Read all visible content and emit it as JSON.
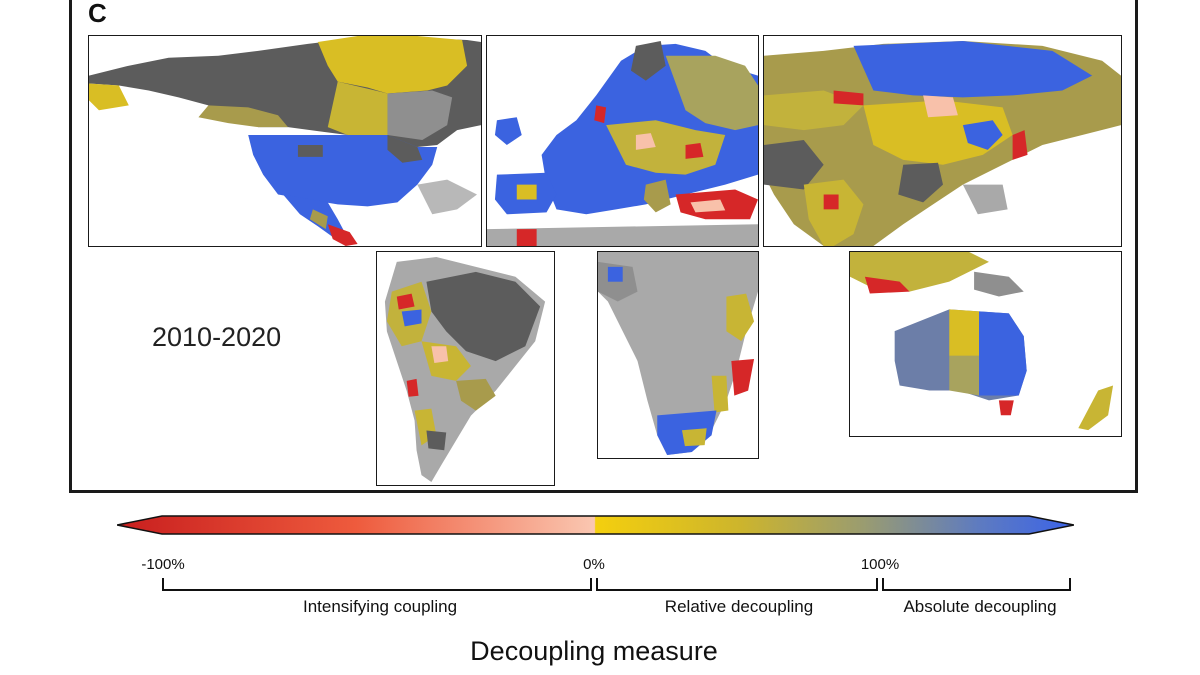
{
  "panel_label": "C",
  "period_label": "2010-2020",
  "legend": {
    "title": "Decoupling measure",
    "ticks": [
      "-100%",
      "0%",
      "100%"
    ],
    "categories": [
      "Intensifying coupling",
      "Relative decoupling",
      "Absolute decoupling"
    ],
    "colors": {
      "strong_coupling": "#d62728",
      "weak_coupling": "#f8c1aa",
      "relative_start": "#f2cc18",
      "relative_mid": "#a8a35e",
      "absolute": "#3b63e0",
      "no_data": "#a9a9a9",
      "dark_no_data": "#5c5c5c"
    }
  },
  "regions": [
    {
      "name": "North America"
    },
    {
      "name": "Europe"
    },
    {
      "name": "Asia"
    },
    {
      "name": "South America"
    },
    {
      "name": "Africa"
    },
    {
      "name": "Oceania"
    }
  ]
}
